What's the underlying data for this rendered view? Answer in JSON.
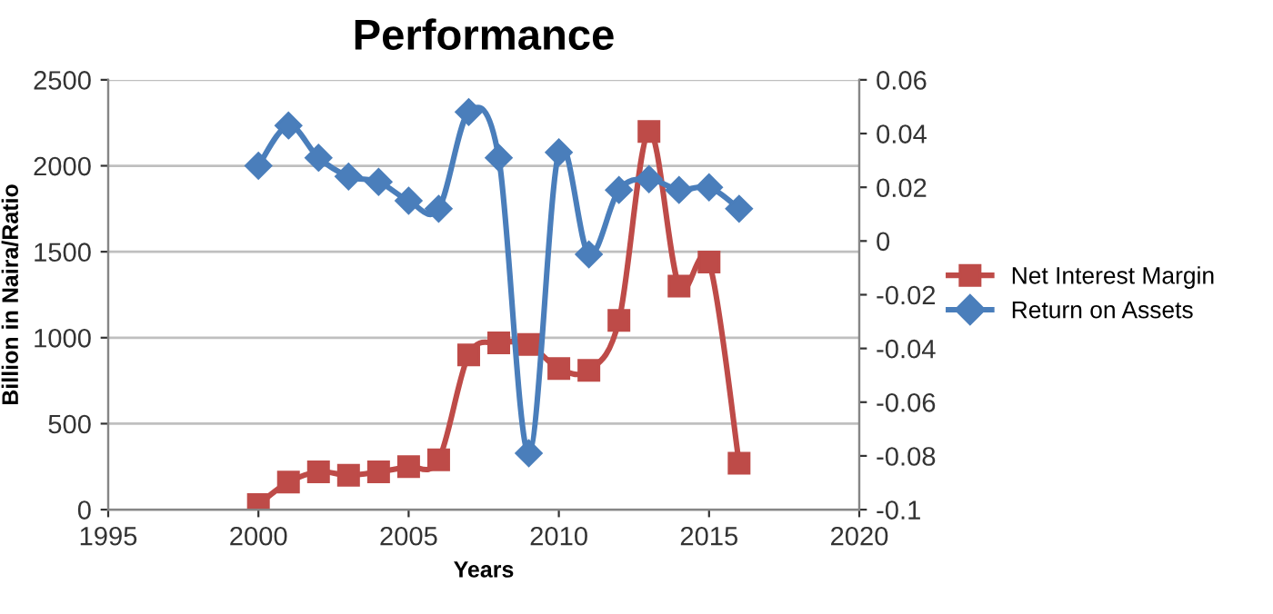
{
  "chart_data": {
    "type": "line",
    "title": "Performance",
    "xlabel": "Years",
    "ylabel": "Billion in Naira/Ratio",
    "x": [
      2000,
      2001,
      2002,
      2003,
      2004,
      2005,
      2006,
      2007,
      2008,
      2009,
      2010,
      2011,
      2012,
      2013,
      2014,
      2015,
      2016
    ],
    "series": [
      {
        "name": "Net Interest Margin",
        "color": "#be4b48",
        "marker": "square",
        "values": [
          30,
          160,
          220,
          200,
          220,
          250,
          290,
          900,
          970,
          960,
          820,
          810,
          1100,
          2200,
          1300,
          1440,
          270
        ]
      },
      {
        "name": "Return on Assets",
        "color": "#4a7ebb",
        "marker": "diamond",
        "axis": "y2",
        "values": [
          0.028,
          0.043,
          0.031,
          0.024,
          0.022,
          0.015,
          0.012,
          0.048,
          0.031,
          -0.079,
          0.033,
          -0.005,
          0.019,
          0.023,
          0.019,
          0.02,
          0.012
        ]
      }
    ],
    "xlim": [
      1995,
      2020
    ],
    "xticks": [
      1995,
      2000,
      2005,
      2010,
      2015,
      2020
    ],
    "ylim": [
      0,
      2500
    ],
    "yticks": [
      0,
      500,
      1000,
      1500,
      2000,
      2500
    ],
    "y2lim": [
      -0.1,
      0.06
    ],
    "y2ticks": [
      -0.1,
      -0.08,
      -0.06,
      -0.04,
      -0.02,
      0,
      0.02,
      0.04,
      0.06
    ],
    "grid": "y",
    "legend": "right",
    "line_style": "solid"
  }
}
